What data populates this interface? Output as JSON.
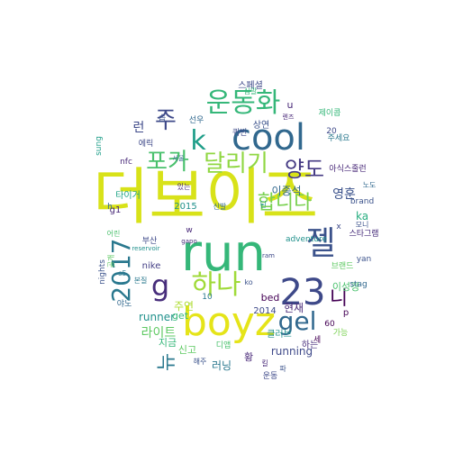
{
  "words": [
    {
      "text": "더보이즈",
      "color": "#d8e219"
    },
    {
      "text": "run",
      "color": "#35b779"
    },
    {
      "text": "boyz",
      "color": "#e5e419"
    },
    {
      "text": "cool",
      "color": "#31688e"
    },
    {
      "text": "23",
      "color": "#3e4989"
    },
    {
      "text": "운동화",
      "color": "#35b779"
    },
    {
      "text": "2017",
      "color": "#2a788e"
    },
    {
      "text": "젤",
      "color": "#3b528b"
    },
    {
      "text": "하나",
      "color": "#a0da39"
    },
    {
      "text": "포카",
      "color": "#4ac16d"
    },
    {
      "text": "달리기",
      "color": "#90d743"
    },
    {
      "text": "양도",
      "color": "#443983"
    },
    {
      "text": "k",
      "color": "#1f9e89"
    },
    {
      "text": "주",
      "color": "#3e4989"
    },
    {
      "text": "gel",
      "color": "#31688e"
    },
    {
      "text": "g",
      "color": "#472d7b"
    },
    {
      "text": "합니다",
      "color": "#7ad151"
    },
    {
      "text": "니",
      "color": "#440154"
    },
    {
      "text": "뉴",
      "color": "#2a788e"
    },
    {
      "text": "running",
      "color": "#3e4989"
    },
    {
      "text": "라이트",
      "color": "#5ec962"
    },
    {
      "text": "runner",
      "color": "#21918c"
    },
    {
      "text": "이종석",
      "color": "#31688e"
    },
    {
      "text": "현재",
      "color": "#482878"
    },
    {
      "text": "러닝",
      "color": "#2a788e"
    },
    {
      "text": "주연",
      "color": "#addc30"
    },
    {
      "text": "영훈",
      "color": "#3b528b"
    },
    {
      "text": "ka",
      "color": "#28ae80"
    },
    {
      "text": "런",
      "color": "#3e4989"
    },
    {
      "text": "get",
      "color": "#35b779"
    },
    {
      "text": "이성경",
      "color": "#4ac16d"
    },
    {
      "text": "스페셜",
      "color": "#3e4989"
    },
    {
      "text": "신고",
      "color": "#5ec962"
    },
    {
      "text": "하는",
      "color": "#472d7b"
    },
    {
      "text": "지금",
      "color": "#35b779"
    },
    {
      "text": "클러브",
      "color": "#21918c"
    },
    {
      "text": "bed",
      "color": "#440154"
    },
    {
      "text": "2014",
      "color": "#3e4989"
    },
    {
      "text": "nike",
      "color": "#433e85"
    },
    {
      "text": "brand",
      "color": "#3b528b"
    },
    {
      "text": "g1",
      "color": "#482878"
    },
    {
      "text": "lee",
      "color": "#31688e"
    },
    {
      "text": "2015",
      "color": "#21918c"
    },
    {
      "text": "타이거",
      "color": "#20a486"
    },
    {
      "text": "상연",
      "color": "#3b528b"
    },
    {
      "text": "선우",
      "color": "#31688e"
    },
    {
      "text": "에릭",
      "color": "#3e4989"
    },
    {
      "text": "아식스줄런",
      "color": "#482878"
    },
    {
      "text": "주세요",
      "color": "#2a788e"
    },
    {
      "text": "제이콥",
      "color": "#35b779"
    },
    {
      "text": "adventure",
      "color": "#21918c"
    },
    {
      "text": "스타그램",
      "color": "#472d7b"
    },
    {
      "text": "브랜드",
      "color": "#5ec962"
    },
    {
      "text": "신발",
      "color": "#31688e"
    },
    {
      "text": "모니",
      "color": "#3b528b"
    },
    {
      "text": "운동",
      "color": "#3e4989"
    },
    {
      "text": "디앱",
      "color": "#4ac16d"
    },
    {
      "text": "sung",
      "color": "#1f9e89"
    },
    {
      "text": "nfc",
      "color": "#482878"
    },
    {
      "text": "yan",
      "color": "#3b528b"
    },
    {
      "text": "stag",
      "color": "#31688e"
    },
    {
      "text": "60",
      "color": "#440154"
    },
    {
      "text": "20",
      "color": "#3e4989"
    },
    {
      "text": "10",
      "color": "#2a788e"
    },
    {
      "text": "u",
      "color": "#482878"
    },
    {
      "text": "p",
      "color": "#440154"
    },
    {
      "text": "x",
      "color": "#3e4989"
    },
    {
      "text": "h",
      "color": "#31688e"
    },
    {
      "text": "w",
      "color": "#482878"
    },
    {
      "text": "ko",
      "color": "#3b528b"
    },
    {
      "text": "가능",
      "color": "#7ad151"
    },
    {
      "text": "부산",
      "color": "#3e4989"
    },
    {
      "text": "심말",
      "color": "#35b779"
    },
    {
      "text": "해주",
      "color": "#3b528b"
    },
    {
      "text": "야노",
      "color": "#31688e"
    },
    {
      "text": "황",
      "color": "#482878"
    },
    {
      "text": "된",
      "color": "#21918c"
    },
    {
      "text": "세",
      "color": "#440154"
    },
    {
      "text": "카",
      "color": "#433e85"
    },
    {
      "text": "습",
      "color": "#3b528b"
    },
    {
      "text": "공개",
      "color": "#5ec962"
    },
    {
      "text": "본질",
      "color": "#2a788e"
    },
    {
      "text": "퀴빈",
      "color": "#3e4989"
    },
    {
      "text": "있는",
      "color": "#482878"
    },
    {
      "text": "노도",
      "color": "#31688e"
    },
    {
      "text": "reservoir",
      "color": "#21918c"
    },
    {
      "text": "nights",
      "color": "#3b528b"
    },
    {
      "text": "어린",
      "color": "#4ac16d"
    },
    {
      "text": "gapo",
      "color": "#472d7b"
    },
    {
      "text": "ram",
      "color": "#3e4989"
    },
    {
      "text": "렌즈",
      "color": "#482878"
    },
    {
      "text": "서울",
      "color": "#31688e"
    },
    {
      "text": "ny",
      "color": "#440154"
    },
    {
      "text": "s5",
      "color": "#2a788e"
    },
    {
      "text": "파",
      "color": "#3b528b"
    },
    {
      "text": "킬",
      "color": "#482878"
    }
  ]
}
